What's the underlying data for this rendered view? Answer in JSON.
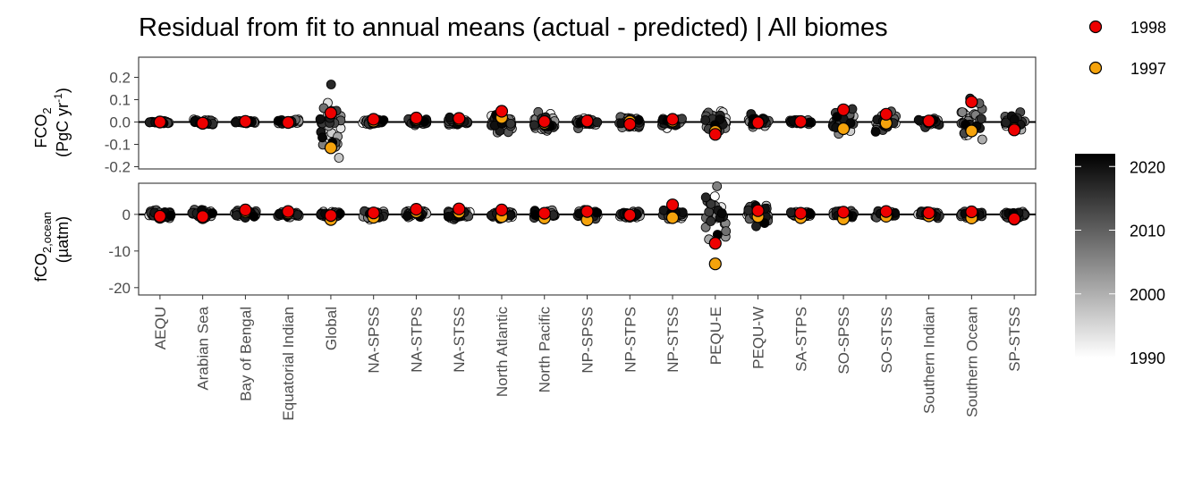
{
  "chart_data": {
    "type": "scatter",
    "title": "Residual from fit to annual means (actual - predicted) | All biomes",
    "categories": [
      "AEQU",
      "Arabian Sea",
      "Bay of Bengal",
      "Equatorial Indian",
      "Global",
      "NA-SPSS",
      "NA-STPS",
      "NA-STSS",
      "North Atlantic",
      "North Pacific",
      "NP-SPSS",
      "NP-STPS",
      "NP-STSS",
      "PEQU-E",
      "PEQU-W",
      "SA-STPS",
      "SO-SPSS",
      "SO-STSS",
      "Southern Indian",
      "Southern Ocean",
      "SP-STSS"
    ],
    "panels": [
      {
        "name": "FCO2",
        "ylabel_main": "FCO",
        "ylabel_sub": "2",
        "ylabel_line2_a": "(PgC yr",
        "ylabel_line2_sup": "-1",
        "ylabel_line2_b": ")",
        "ylim": [
          -0.21,
          0.29
        ],
        "yticks": [
          -0.2,
          -0.1,
          0.0,
          0.1,
          0.2
        ],
        "yticklabels": [
          "-0.2",
          "-0.1",
          "0.0",
          "0.1",
          "0.2"
        ],
        "spread": [
          0.006,
          0.01,
          0.006,
          0.008,
          0.12,
          0.012,
          0.012,
          0.01,
          0.035,
          0.04,
          0.015,
          0.02,
          0.015,
          0.045,
          0.02,
          0.01,
          0.05,
          0.035,
          0.015,
          0.08,
          0.03
        ],
        "series": [
          {
            "name": "1998",
            "color": "#ee0000",
            "values": [
              0.0,
              -0.005,
              0.003,
              -0.002,
              0.04,
              0.012,
              0.018,
              0.016,
              0.048,
              0.002,
              0.005,
              -0.01,
              0.012,
              -0.055,
              -0.003,
              0.002,
              0.055,
              0.035,
              0.005,
              0.09,
              -0.035
            ]
          },
          {
            "name": "1997",
            "color": "#f5a30c",
            "values": [
              0.0,
              -0.006,
              0.002,
              -0.002,
              -0.115,
              0.004,
              0.012,
              0.01,
              0.02,
              -0.005,
              0.0,
              0.002,
              0.004,
              -0.042,
              0.0,
              0.0,
              -0.03,
              -0.005,
              0.001,
              -0.04,
              -0.03
            ]
          }
        ]
      },
      {
        "name": "fCO2,ocean",
        "ylabel_main": "fCO",
        "ylabel_sub": "2,ocean",
        "ylabel_line2": "(µatm)",
        "ylim": [
          -22,
          8.5
        ],
        "yticks": [
          -20,
          -10,
          0
        ],
        "yticklabels": [
          "-20",
          "-10",
          "0"
        ],
        "spread": [
          0.8,
          1.2,
          0.8,
          0.8,
          0.8,
          1.2,
          0.9,
          1.0,
          0.8,
          0.9,
          1.2,
          0.8,
          1.0,
          6.5,
          2.5,
          0.8,
          0.8,
          0.8,
          0.6,
          0.8,
          0.8
        ],
        "series": [
          {
            "name": "1998",
            "color": "#ee0000",
            "values": [
              -0.5,
              -0.6,
              1.2,
              0.8,
              -0.3,
              0.4,
              1.4,
              1.5,
              1.2,
              0.3,
              0.8,
              -0.2,
              2.6,
              -7.9,
              1.0,
              0.3,
              0.6,
              0.8,
              0.4,
              0.7,
              -1.2
            ]
          },
          {
            "name": "1997",
            "color": "#f5a30c",
            "values": [
              -0.8,
              -0.9,
              0.8,
              0.4,
              -1.4,
              -0.8,
              0.7,
              0.6,
              -0.6,
              -1.0,
              -1.5,
              -0.5,
              -0.9,
              -13.5,
              -0.6,
              -0.9,
              -1.2,
              -0.5,
              -0.4,
              -1.0,
              -1.3
            ]
          }
        ]
      }
    ],
    "legend": {
      "position": "top-right",
      "entries": [
        {
          "label": "1998",
          "color": "#ee0000"
        },
        {
          "label": "1997",
          "color": "#f5a30c"
        }
      ]
    },
    "colorbar": {
      "range": [
        1990,
        2022
      ],
      "ticks": [
        1990,
        2000,
        2010,
        2020
      ],
      "ticklabels": [
        "1990",
        "2000",
        "2010",
        "2020"
      ],
      "low_color": "#ffffff",
      "high_color": "#000000"
    }
  }
}
